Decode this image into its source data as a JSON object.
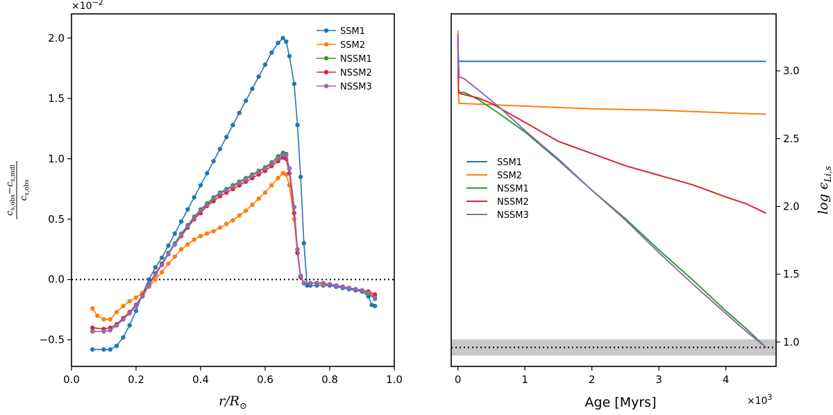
{
  "chart_data": [
    {
      "type": "line",
      "markers": true,
      "xlabel": "r/R⊙",
      "ylabel": "(c_s,obs − c_s,mdl) / c_s,obs",
      "ylabel_numerator": "c",
      "ylabel_numerator_sub": "s,obs",
      "ylabel_minus": "−c",
      "ylabel_numerator_sub2": "s,mdl",
      "ylabel_denominator": "c",
      "ylabel_denominator_sub": "s,obs",
      "xlabel_main": "r/R",
      "xlabel_sub": "⊙",
      "y_multiplier": "×10",
      "y_multiplier_exp": "−2",
      "xlim": [
        0.0,
        1.0
      ],
      "ylim": [
        -0.72,
        2.2
      ],
      "x_ticks": [
        0.0,
        0.2,
        0.4,
        0.6,
        0.8,
        1.0
      ],
      "x_tick_labels": [
        "0.0",
        "0.2",
        "0.4",
        "0.6",
        "0.8",
        "1.0"
      ],
      "y_ticks": [
        -0.5,
        0.0,
        0.5,
        1.0,
        1.5,
        2.0
      ],
      "y_tick_labels": [
        "−0.5",
        "0.0",
        "0.5",
        "1.0",
        "1.5",
        "2.0"
      ],
      "reference_line": {
        "y": 0.0,
        "style": "dotted"
      },
      "legend_position": "top-right",
      "series": [
        {
          "name": "SSM1",
          "color": "#1f77b4",
          "x": [
            0.065,
            0.1,
            0.12,
            0.14,
            0.16,
            0.18,
            0.2,
            0.22,
            0.24,
            0.26,
            0.28,
            0.3,
            0.32,
            0.34,
            0.36,
            0.38,
            0.4,
            0.42,
            0.44,
            0.46,
            0.48,
            0.5,
            0.52,
            0.54,
            0.56,
            0.58,
            0.6,
            0.62,
            0.64,
            0.655,
            0.665,
            0.675,
            0.69,
            0.7,
            0.71,
            0.72,
            0.73,
            0.74,
            0.76,
            0.78,
            0.8,
            0.82,
            0.84,
            0.86,
            0.88,
            0.9,
            0.92,
            0.93,
            0.94
          ],
          "y": [
            -0.58,
            -0.58,
            -0.58,
            -0.55,
            -0.48,
            -0.38,
            -0.26,
            -0.12,
            0.0,
            0.1,
            0.18,
            0.28,
            0.38,
            0.48,
            0.58,
            0.68,
            0.78,
            0.88,
            0.98,
            1.08,
            1.18,
            1.28,
            1.38,
            1.48,
            1.58,
            1.68,
            1.78,
            1.88,
            1.96,
            2.0,
            1.97,
            1.85,
            1.62,
            1.28,
            0.85,
            0.3,
            -0.05,
            -0.05,
            -0.05,
            -0.05,
            -0.05,
            -0.06,
            -0.07,
            -0.08,
            -0.09,
            -0.1,
            -0.14,
            -0.21,
            -0.22
          ]
        },
        {
          "name": "SSM2",
          "color": "#ff7f0e",
          "x": [
            0.065,
            0.08,
            0.1,
            0.12,
            0.14,
            0.16,
            0.18,
            0.2,
            0.22,
            0.24,
            0.26,
            0.28,
            0.3,
            0.32,
            0.34,
            0.36,
            0.38,
            0.4,
            0.42,
            0.44,
            0.46,
            0.48,
            0.5,
            0.52,
            0.54,
            0.56,
            0.58,
            0.6,
            0.62,
            0.64,
            0.655,
            0.665,
            0.675,
            0.69,
            0.7,
            0.71,
            0.72,
            0.74,
            0.76,
            0.78,
            0.8,
            0.82,
            0.84,
            0.86,
            0.88,
            0.9,
            0.92,
            0.94
          ],
          "y": [
            -0.24,
            -0.3,
            -0.33,
            -0.33,
            -0.27,
            -0.22,
            -0.18,
            -0.15,
            -0.11,
            -0.06,
            0.0,
            0.06,
            0.13,
            0.19,
            0.25,
            0.29,
            0.33,
            0.36,
            0.38,
            0.4,
            0.43,
            0.46,
            0.49,
            0.53,
            0.57,
            0.62,
            0.67,
            0.72,
            0.78,
            0.84,
            0.88,
            0.87,
            0.78,
            0.5,
            0.22,
            0.02,
            -0.03,
            -0.03,
            -0.03,
            -0.04,
            -0.04,
            -0.05,
            -0.06,
            -0.07,
            -0.08,
            -0.09,
            -0.1,
            -0.12
          ]
        },
        {
          "name": "NSSM1",
          "color": "#2ca02c",
          "x": [
            0.065,
            0.1,
            0.12,
            0.14,
            0.16,
            0.18,
            0.2,
            0.22,
            0.24,
            0.26,
            0.28,
            0.3,
            0.32,
            0.34,
            0.36,
            0.38,
            0.4,
            0.42,
            0.44,
            0.46,
            0.48,
            0.5,
            0.52,
            0.54,
            0.56,
            0.58,
            0.6,
            0.62,
            0.64,
            0.655,
            0.665,
            0.675,
            0.69,
            0.7,
            0.71,
            0.72,
            0.74,
            0.76,
            0.78,
            0.8,
            0.82,
            0.84,
            0.86,
            0.88,
            0.9,
            0.92,
            0.94
          ],
          "y": [
            -0.43,
            -0.43,
            -0.42,
            -0.38,
            -0.33,
            -0.28,
            -0.22,
            -0.14,
            -0.05,
            0.04,
            0.13,
            0.22,
            0.3,
            0.38,
            0.45,
            0.52,
            0.58,
            0.63,
            0.68,
            0.72,
            0.75,
            0.78,
            0.81,
            0.84,
            0.87,
            0.9,
            0.93,
            0.97,
            1.02,
            1.05,
            1.04,
            0.92,
            0.6,
            0.25,
            0.03,
            -0.03,
            -0.03,
            -0.03,
            -0.03,
            -0.04,
            -0.05,
            -0.06,
            -0.07,
            -0.08,
            -0.09,
            -0.12,
            -0.16
          ]
        },
        {
          "name": "NSSM2",
          "color": "#d62728",
          "x": [
            0.065,
            0.1,
            0.12,
            0.14,
            0.16,
            0.18,
            0.2,
            0.22,
            0.24,
            0.26,
            0.28,
            0.3,
            0.32,
            0.34,
            0.36,
            0.38,
            0.4,
            0.42,
            0.44,
            0.46,
            0.48,
            0.5,
            0.52,
            0.54,
            0.56,
            0.58,
            0.6,
            0.62,
            0.64,
            0.655,
            0.665,
            0.675,
            0.69,
            0.7,
            0.71,
            0.72,
            0.74,
            0.76,
            0.78,
            0.8,
            0.82,
            0.84,
            0.86,
            0.88,
            0.9,
            0.92,
            0.94
          ],
          "y": [
            -0.4,
            -0.41,
            -0.4,
            -0.37,
            -0.32,
            -0.27,
            -0.21,
            -0.13,
            -0.04,
            0.05,
            0.13,
            0.21,
            0.29,
            0.36,
            0.43,
            0.5,
            0.55,
            0.61,
            0.65,
            0.69,
            0.72,
            0.75,
            0.78,
            0.81,
            0.84,
            0.87,
            0.9,
            0.94,
            0.98,
            1.01,
            1.0,
            0.88,
            0.55,
            0.22,
            0.02,
            -0.03,
            -0.03,
            -0.03,
            -0.03,
            -0.04,
            -0.05,
            -0.06,
            -0.07,
            -0.08,
            -0.09,
            -0.1,
            -0.13
          ]
        },
        {
          "name": "NSSM3",
          "color": "#9467bd",
          "x": [
            0.065,
            0.1,
            0.12,
            0.14,
            0.16,
            0.18,
            0.2,
            0.22,
            0.24,
            0.26,
            0.28,
            0.3,
            0.32,
            0.34,
            0.36,
            0.38,
            0.4,
            0.42,
            0.44,
            0.46,
            0.48,
            0.5,
            0.52,
            0.54,
            0.56,
            0.58,
            0.6,
            0.62,
            0.64,
            0.655,
            0.665,
            0.675,
            0.69,
            0.7,
            0.71,
            0.72,
            0.74,
            0.76,
            0.78,
            0.8,
            0.82,
            0.84,
            0.86,
            0.88,
            0.9,
            0.92,
            0.94
          ],
          "y": [
            -0.43,
            -0.43,
            -0.42,
            -0.38,
            -0.33,
            -0.28,
            -0.22,
            -0.14,
            -0.05,
            0.04,
            0.12,
            0.21,
            0.29,
            0.37,
            0.44,
            0.51,
            0.57,
            0.62,
            0.67,
            0.71,
            0.74,
            0.77,
            0.8,
            0.83,
            0.86,
            0.89,
            0.92,
            0.96,
            1.0,
            1.03,
            1.03,
            0.92,
            0.6,
            0.25,
            0.03,
            -0.03,
            -0.03,
            -0.03,
            -0.03,
            -0.04,
            -0.05,
            -0.06,
            -0.07,
            -0.08,
            -0.09,
            -0.11,
            -0.15
          ]
        }
      ]
    },
    {
      "type": "line",
      "markers": false,
      "xlabel": "Age [Myrs]",
      "ylabel": "log ϵLi,s",
      "ylabel_main": "log ϵ",
      "ylabel_sub": "Li,s",
      "x_multiplier": "×10",
      "x_multiplier_exp": "3",
      "xlim": [
        -0.1,
        4.75
      ],
      "ylim": [
        0.82,
        3.42
      ],
      "x_ticks": [
        0,
        1,
        2,
        3,
        4
      ],
      "x_tick_labels": [
        "0",
        "1",
        "2",
        "3",
        "4"
      ],
      "y_ticks": [
        1.0,
        1.5,
        2.0,
        2.5,
        3.0
      ],
      "y_tick_labels": [
        "1.0",
        "1.5",
        "2.0",
        "2.5",
        "3.0"
      ],
      "y_axis_side": "right",
      "reference_line": {
        "y": 0.96,
        "style": "dotted"
      },
      "reference_band": {
        "y0": 0.9,
        "y1": 1.02
      },
      "legend_position": "center-left",
      "series": [
        {
          "name": "SSM1",
          "color": "#1f77b4",
          "x": [
            0.0,
            0.005,
            0.01,
            0.02,
            0.05,
            0.5,
            1.0,
            2.0,
            3.0,
            4.0,
            4.6
          ],
          "y": [
            3.27,
            3.15,
            3.07,
            3.07,
            3.07,
            3.07,
            3.07,
            3.07,
            3.07,
            3.07,
            3.07
          ]
        },
        {
          "name": "SSM2",
          "color": "#ff7f0e",
          "x": [
            0.0,
            0.005,
            0.01,
            0.02,
            0.05,
            0.5,
            1.0,
            2.0,
            3.0,
            4.0,
            4.6
          ],
          "y": [
            3.3,
            3.0,
            2.8,
            2.76,
            2.76,
            2.75,
            2.74,
            2.72,
            2.71,
            2.69,
            2.68
          ]
        },
        {
          "name": "NSSM1",
          "color": "#2ca02c",
          "x": [
            0.0,
            0.005,
            0.01,
            0.02,
            0.1,
            0.3,
            0.6,
            1.0,
            1.5,
            2.0,
            2.5,
            3.0,
            3.5,
            4.0,
            4.3,
            4.6
          ],
          "y": [
            3.27,
            3.0,
            2.86,
            2.84,
            2.84,
            2.79,
            2.69,
            2.55,
            2.34,
            2.12,
            1.91,
            1.68,
            1.46,
            1.23,
            1.1,
            0.96
          ]
        },
        {
          "name": "NSSM2",
          "color": "#d62728",
          "x": [
            0.0,
            0.005,
            0.01,
            0.05,
            0.3,
            0.5,
            1.0,
            1.5,
            2.0,
            2.5,
            3.0,
            3.5,
            4.0,
            4.3,
            4.6
          ],
          "y": [
            3.27,
            3.0,
            2.84,
            2.83,
            2.8,
            2.76,
            2.62,
            2.48,
            2.39,
            2.3,
            2.23,
            2.16,
            2.07,
            2.02,
            1.95
          ]
        },
        {
          "name": "NSSM3",
          "color": "#9467bd",
          "x": [
            0.0,
            0.005,
            0.02,
            0.05,
            0.1,
            0.15,
            0.3,
            0.6,
            1.0,
            1.5,
            2.0,
            2.5,
            3.0,
            3.5,
            4.0,
            4.3,
            4.6
          ],
          "y": [
            3.27,
            3.1,
            2.95,
            2.95,
            2.94,
            2.92,
            2.86,
            2.74,
            2.56,
            2.35,
            2.12,
            1.9,
            1.66,
            1.43,
            1.21,
            1.08,
            0.96
          ]
        }
      ]
    }
  ]
}
